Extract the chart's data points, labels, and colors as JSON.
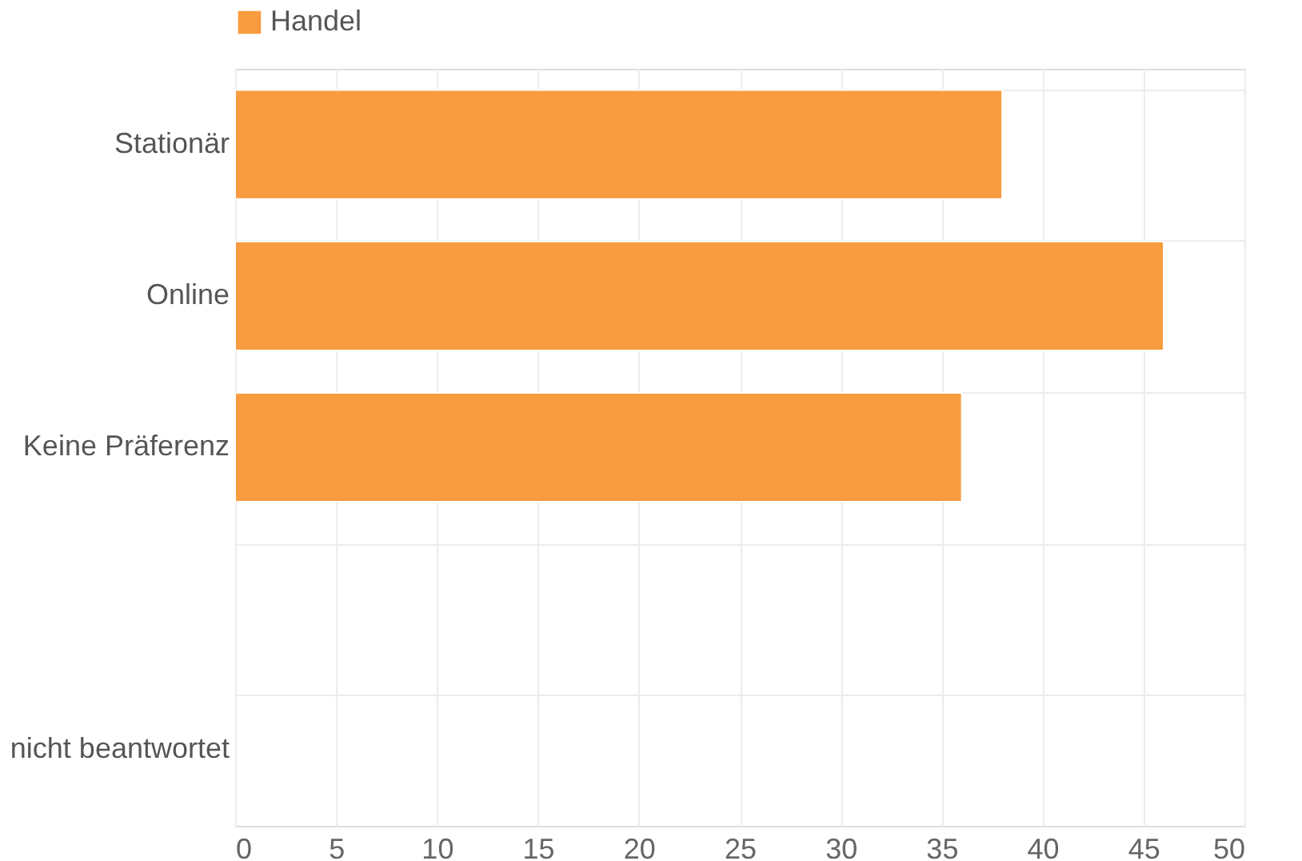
{
  "chart_data": {
    "type": "bar",
    "orientation": "horizontal",
    "categories": [
      "Stationär",
      "Online",
      "Keine Präferenz",
      null,
      "nicht beantwortet"
    ],
    "series": [
      {
        "name": "Handel",
        "color": "#f99c3f",
        "values": [
          38,
          46,
          36,
          null,
          null
        ]
      }
    ],
    "xlim": [
      0,
      50
    ],
    "xticks": [
      0,
      5,
      10,
      15,
      20,
      25,
      30,
      35,
      40,
      45,
      50
    ],
    "grid": true,
    "legend": "top"
  }
}
